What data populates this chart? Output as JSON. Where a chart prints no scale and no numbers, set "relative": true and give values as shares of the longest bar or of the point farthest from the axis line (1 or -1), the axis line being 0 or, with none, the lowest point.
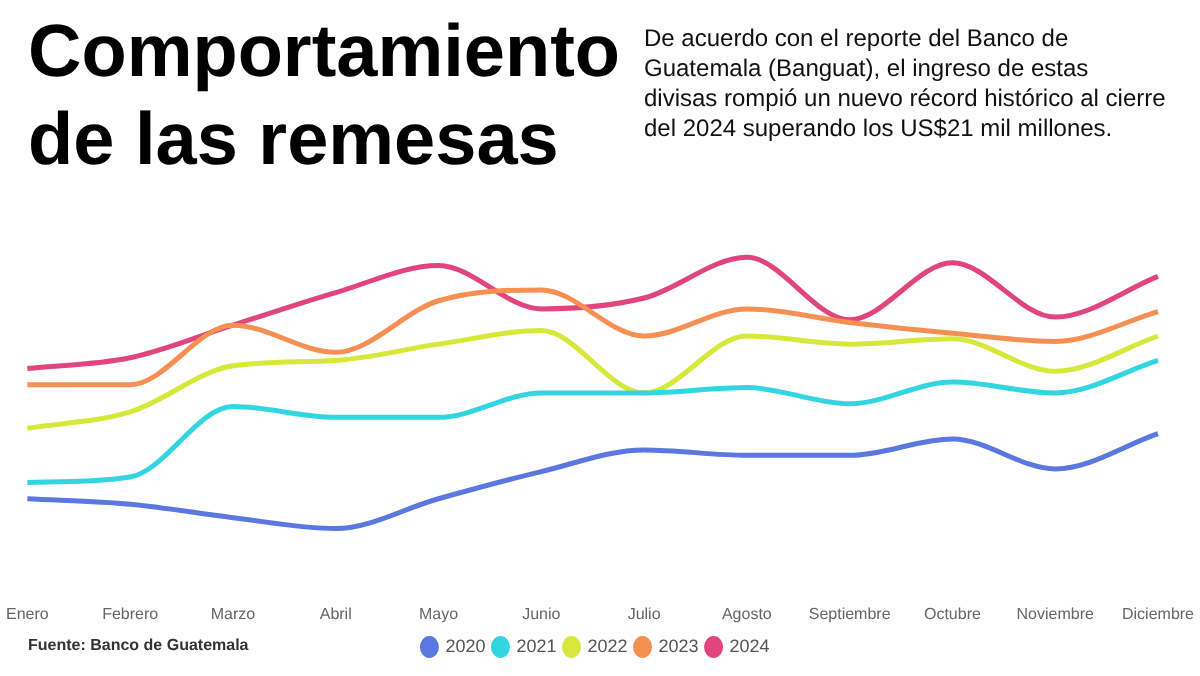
{
  "chart_data": {
    "type": "line",
    "title": "Comportamiento de las remesas",
    "subtitle": "De acuerdo con el reporte del Banco de Guatemala (Banguat), el ingreso de estas divisas rompió un nuevo récord histórico al cierre del 2024 superando los US$21 mil millones.",
    "annotations": [
      "Fuente: Banco de Guatemala"
    ],
    "relative": true,
    "legend": "bottom",
    "marker": "none",
    "line_style": "solid",
    "categories": [
      "Enero",
      "Febrero",
      "Marzo",
      "Abril",
      "Mayo",
      "Junio",
      "Julio",
      "Agosto",
      "Septiembre",
      "Octubre",
      "Noviembre",
      "Diciembre"
    ],
    "series": [
      {
        "name": "2020",
        "color": "#5b77e0",
        "values": [
          0.11,
          0.09,
          0.04,
          0,
          0.11,
          0.21,
          0.29,
          0.27,
          0.27,
          0.33,
          0.22,
          0.35
        ]
      },
      {
        "name": "2021",
        "color": "#33d6e0",
        "values": [
          0.17,
          0.19,
          0.45,
          0.41,
          0.41,
          0.5,
          0.5,
          0.52,
          0.46,
          0.54,
          0.5,
          0.62
        ]
      },
      {
        "name": "2022",
        "color": "#d7e83a",
        "values": [
          0.37,
          0.43,
          0.6,
          0.62,
          0.68,
          0.73,
          0.5,
          0.71,
          0.68,
          0.7,
          0.58,
          0.71
        ]
      },
      {
        "name": "2023",
        "color": "#f58f52",
        "values": [
          0.53,
          0.53,
          0.75,
          0.65,
          0.84,
          0.88,
          0.71,
          0.81,
          0.76,
          0.72,
          0.69,
          0.8
        ]
      },
      {
        "name": "2024",
        "color": "#e0457d",
        "values": [
          0.59,
          0.63,
          0.75,
          0.87,
          0.97,
          0.81,
          0.85,
          1,
          0.77,
          0.98,
          0.78,
          0.93
        ]
      }
    ]
  }
}
